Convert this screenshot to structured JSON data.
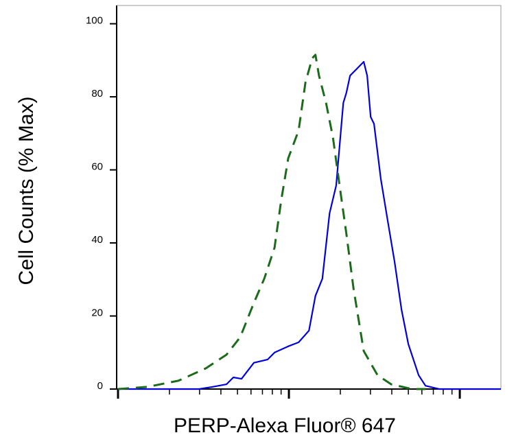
{
  "chart_data": {
    "type": "line",
    "xlabel": "PERP-Alexa Fluor® 647",
    "ylabel": "Cell Counts (% Max)",
    "xscale": "log",
    "xlim": [
      1,
      174
    ],
    "xticks": [
      1,
      10,
      100
    ],
    "xminorticks": [
      2,
      3,
      4,
      5,
      6,
      7,
      8,
      9,
      20,
      30,
      40,
      50,
      60,
      70,
      80,
      90
    ],
    "ylim": [
      0,
      105
    ],
    "yticks": [
      0,
      20,
      40,
      60,
      80,
      100
    ],
    "series": [
      {
        "color": "#0000dd",
        "dash": false,
        "x": [
          1,
          2.06,
          2.98,
          3.58,
          4.31,
          4.73,
          5.28,
          6.24,
          7.51,
          8.24,
          9.91,
          11.4,
          13.1,
          14.3,
          15.7,
          17.3,
          18.9,
          20.8,
          21.7,
          22.8,
          25.0,
          27.4,
          28.7,
          30.1,
          31.5,
          34.5,
          37.8,
          41.5,
          45.6,
          50.0,
          57.4,
          63.0,
          75.8,
          174
        ],
        "values": [
          0,
          0,
          0,
          0.6,
          1.3,
          3.2,
          2.8,
          7.2,
          8.1,
          10,
          11.7,
          12.8,
          16,
          25.5,
          30.2,
          48.1,
          55.7,
          78.3,
          81.1,
          85.8,
          87.7,
          89.6,
          85.8,
          74.5,
          72.6,
          57.5,
          46.2,
          34.9,
          21.7,
          12.3,
          3.8,
          0.9,
          0,
          0
        ]
      },
      {
        "color": "#1a6b1a",
        "dash": true,
        "x": [
          1,
          1.49,
          2.26,
          3.27,
          4.31,
          5.19,
          6.24,
          7.17,
          8.24,
          9.03,
          9.91,
          11.4,
          12.5,
          13.7,
          14.3,
          15.0,
          16.5,
          18.1,
          19.8,
          21.7,
          23.9,
          27.4,
          33.0,
          39.7,
          52.4,
          63.0
        ],
        "values": [
          0,
          0.6,
          2.3,
          5.7,
          9.4,
          14.2,
          23.6,
          30.2,
          38.7,
          51.9,
          63.2,
          70.8,
          84,
          90.6,
          91.5,
          85.8,
          78.3,
          68.9,
          55.7,
          42.5,
          27.4,
          10.4,
          3.8,
          1.3,
          0,
          0
        ]
      }
    ]
  }
}
